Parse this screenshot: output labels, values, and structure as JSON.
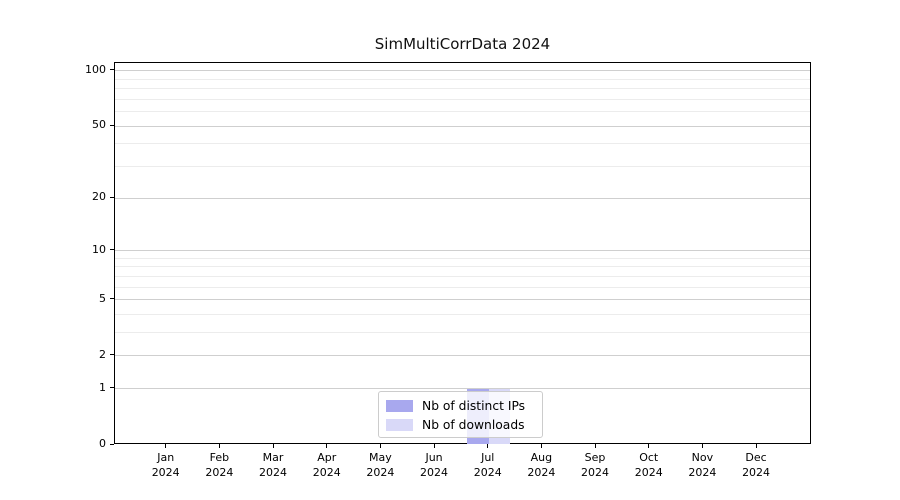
{
  "chart_data": {
    "type": "bar",
    "title": "SimMultiCorrData 2024",
    "categories": [
      "Jan",
      "Feb",
      "Mar",
      "Apr",
      "May",
      "Jun",
      "Jul",
      "Aug",
      "Sep",
      "Oct",
      "Nov",
      "Dec"
    ],
    "category_year_line": "2024",
    "series": [
      {
        "name": "Nb of distinct IPs",
        "color": "#a8a8ee",
        "values": [
          0,
          0,
          0,
          0,
          0,
          0,
          1,
          0,
          0,
          0,
          0,
          0
        ]
      },
      {
        "name": "Nb of downloads",
        "color": "#d9d9f8",
        "values": [
          0,
          0,
          0,
          0,
          0,
          0,
          1,
          0,
          0,
          0,
          0,
          0
        ]
      }
    ],
    "xlabel": "",
    "ylabel": "",
    "yscale": "log1p",
    "ylim": [
      0,
      110
    ],
    "y_major_ticks": [
      0,
      1,
      2,
      5,
      10,
      20,
      50,
      100
    ],
    "y_minor_gridlines": [
      3,
      4,
      6,
      7,
      8,
      9,
      30,
      40,
      60,
      70,
      80,
      90
    ],
    "grid": true,
    "legend_position": "lower center"
  },
  "colors": {
    "grid_major": "#cfcfcf",
    "grid_minor": "#ececec",
    "spine": "#000000",
    "text": "#000000",
    "legend_border": "#cccccc"
  }
}
